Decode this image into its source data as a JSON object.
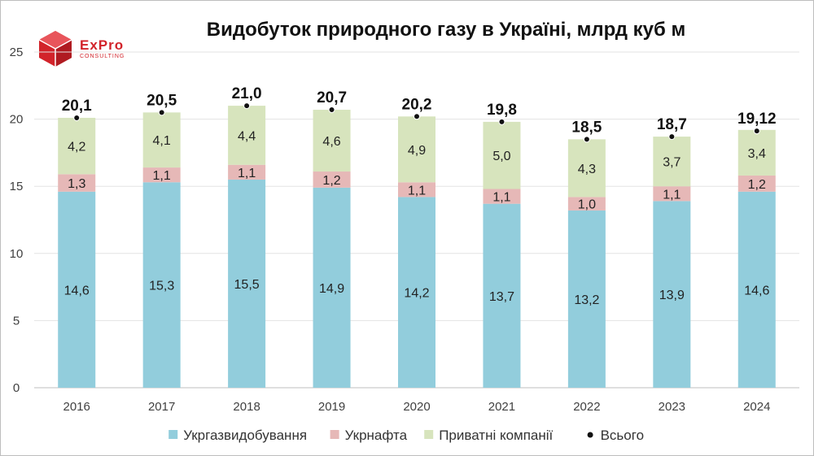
{
  "logo": {
    "name": "ExPro",
    "sub": "CONSULTING",
    "color": "#d2232a"
  },
  "chart_data": {
    "type": "bar",
    "stacked": true,
    "title": "Видобуток природного газу в Україні, млрд куб м",
    "xlabel": "",
    "ylabel": "",
    "ylim": [
      0,
      25
    ],
    "yticks": [
      0,
      5,
      10,
      15,
      20,
      25
    ],
    "grid": true,
    "categories": [
      "2016",
      "2017",
      "2018",
      "2019",
      "2020",
      "2021",
      "2022",
      "2023",
      "2024"
    ],
    "series": [
      {
        "name": "Укргазвидобування",
        "color": "#92cddc",
        "values": [
          14.6,
          15.3,
          15.5,
          14.9,
          14.2,
          13.7,
          13.2,
          13.9,
          14.6
        ],
        "labels": [
          "14,6",
          "15,3",
          "15,5",
          "14,9",
          "14,2",
          "13,7",
          "13,2",
          "13,9",
          "14,6"
        ]
      },
      {
        "name": "Укрнафта",
        "color": "#e6b8b7",
        "values": [
          1.3,
          1.1,
          1.1,
          1.2,
          1.1,
          1.1,
          1.0,
          1.1,
          1.2
        ],
        "labels": [
          "1,3",
          "1,1",
          "1,1",
          "1,2",
          "1,1",
          "1,1",
          "1,0",
          "1,1",
          "1,2"
        ]
      },
      {
        "name": "Приватні компанії",
        "color": "#d7e4bd",
        "values": [
          4.2,
          4.1,
          4.4,
          4.6,
          4.9,
          5.0,
          4.3,
          3.7,
          3.4
        ],
        "labels": [
          "4,2",
          "4,1",
          "4,4",
          "4,6",
          "4,9",
          "5,0",
          "4,3",
          "3,7",
          "3,4"
        ]
      }
    ],
    "totals": {
      "name": "Всього",
      "values": [
        20.1,
        20.5,
        21.0,
        20.7,
        20.2,
        19.8,
        18.5,
        18.7,
        19.12
      ],
      "labels": [
        "20,1",
        "20,5",
        "21,0",
        "20,7",
        "20,2",
        "19,8",
        "18,5",
        "18,7",
        "19,12"
      ]
    },
    "legend_position": "bottom"
  }
}
